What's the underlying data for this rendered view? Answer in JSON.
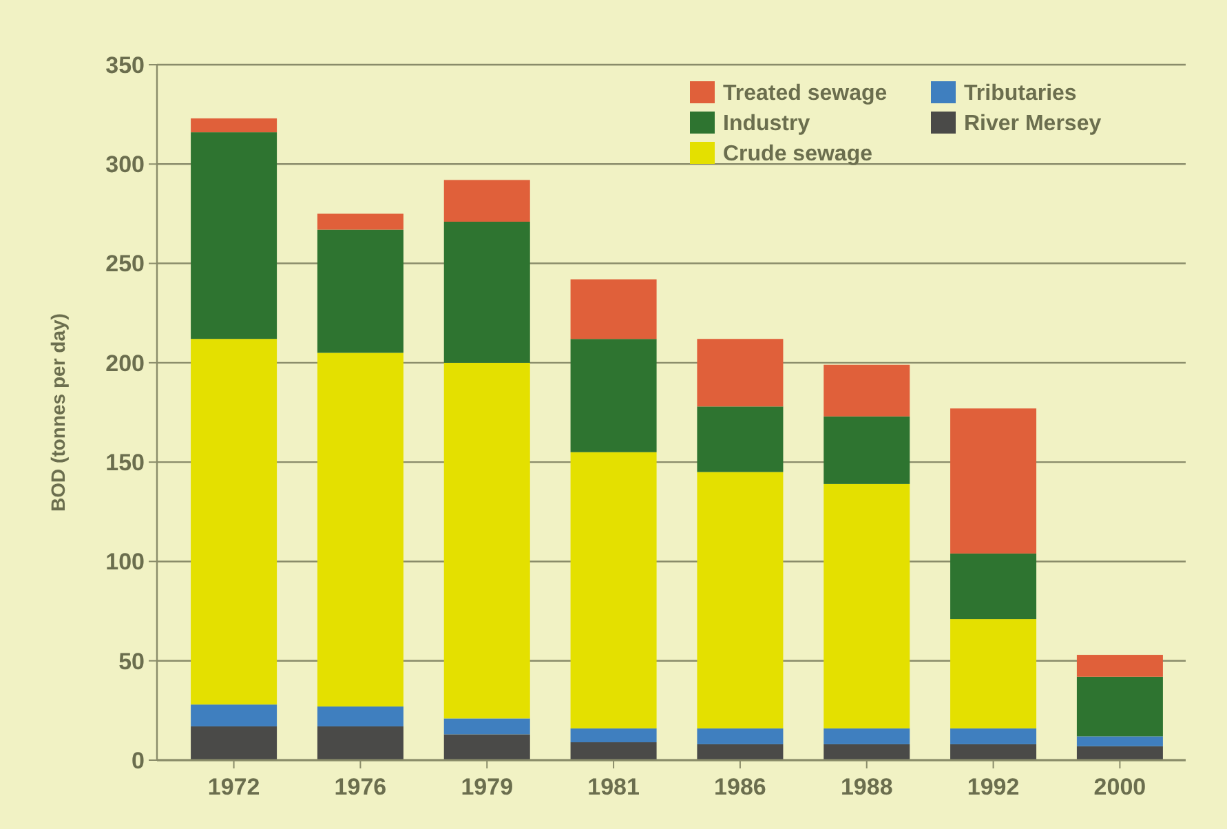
{
  "chart_data": {
    "type": "bar",
    "stacked": true,
    "ylabel": "BOD (tonnes per day)",
    "categories": [
      "1972",
      "1976",
      "1979",
      "1981",
      "1986",
      "1988",
      "1992",
      "2000"
    ],
    "series": [
      {
        "name": "River Mersey",
        "color": "#4a4a48",
        "values": [
          17,
          17,
          13,
          9,
          8,
          8,
          8,
          7
        ]
      },
      {
        "name": "Tributaries",
        "color": "#3f7fbf",
        "values": [
          11,
          10,
          8,
          7,
          8,
          8,
          8,
          5
        ]
      },
      {
        "name": "Crude sewage",
        "color": "#e4e000",
        "values": [
          184,
          178,
          179,
          139,
          129,
          123,
          55,
          0
        ]
      },
      {
        "name": "Industry",
        "color": "#2e7430",
        "values": [
          104,
          62,
          71,
          57,
          33,
          34,
          33,
          30
        ]
      },
      {
        "name": "Treated sewage",
        "color": "#e0603a",
        "values": [
          7,
          8,
          21,
          30,
          34,
          26,
          73,
          11
        ]
      }
    ],
    "ylim": [
      0,
      350
    ],
    "yticks": [
      0,
      50,
      100,
      150,
      200,
      250,
      300,
      350
    ],
    "grid": "y",
    "legend": "top right"
  }
}
